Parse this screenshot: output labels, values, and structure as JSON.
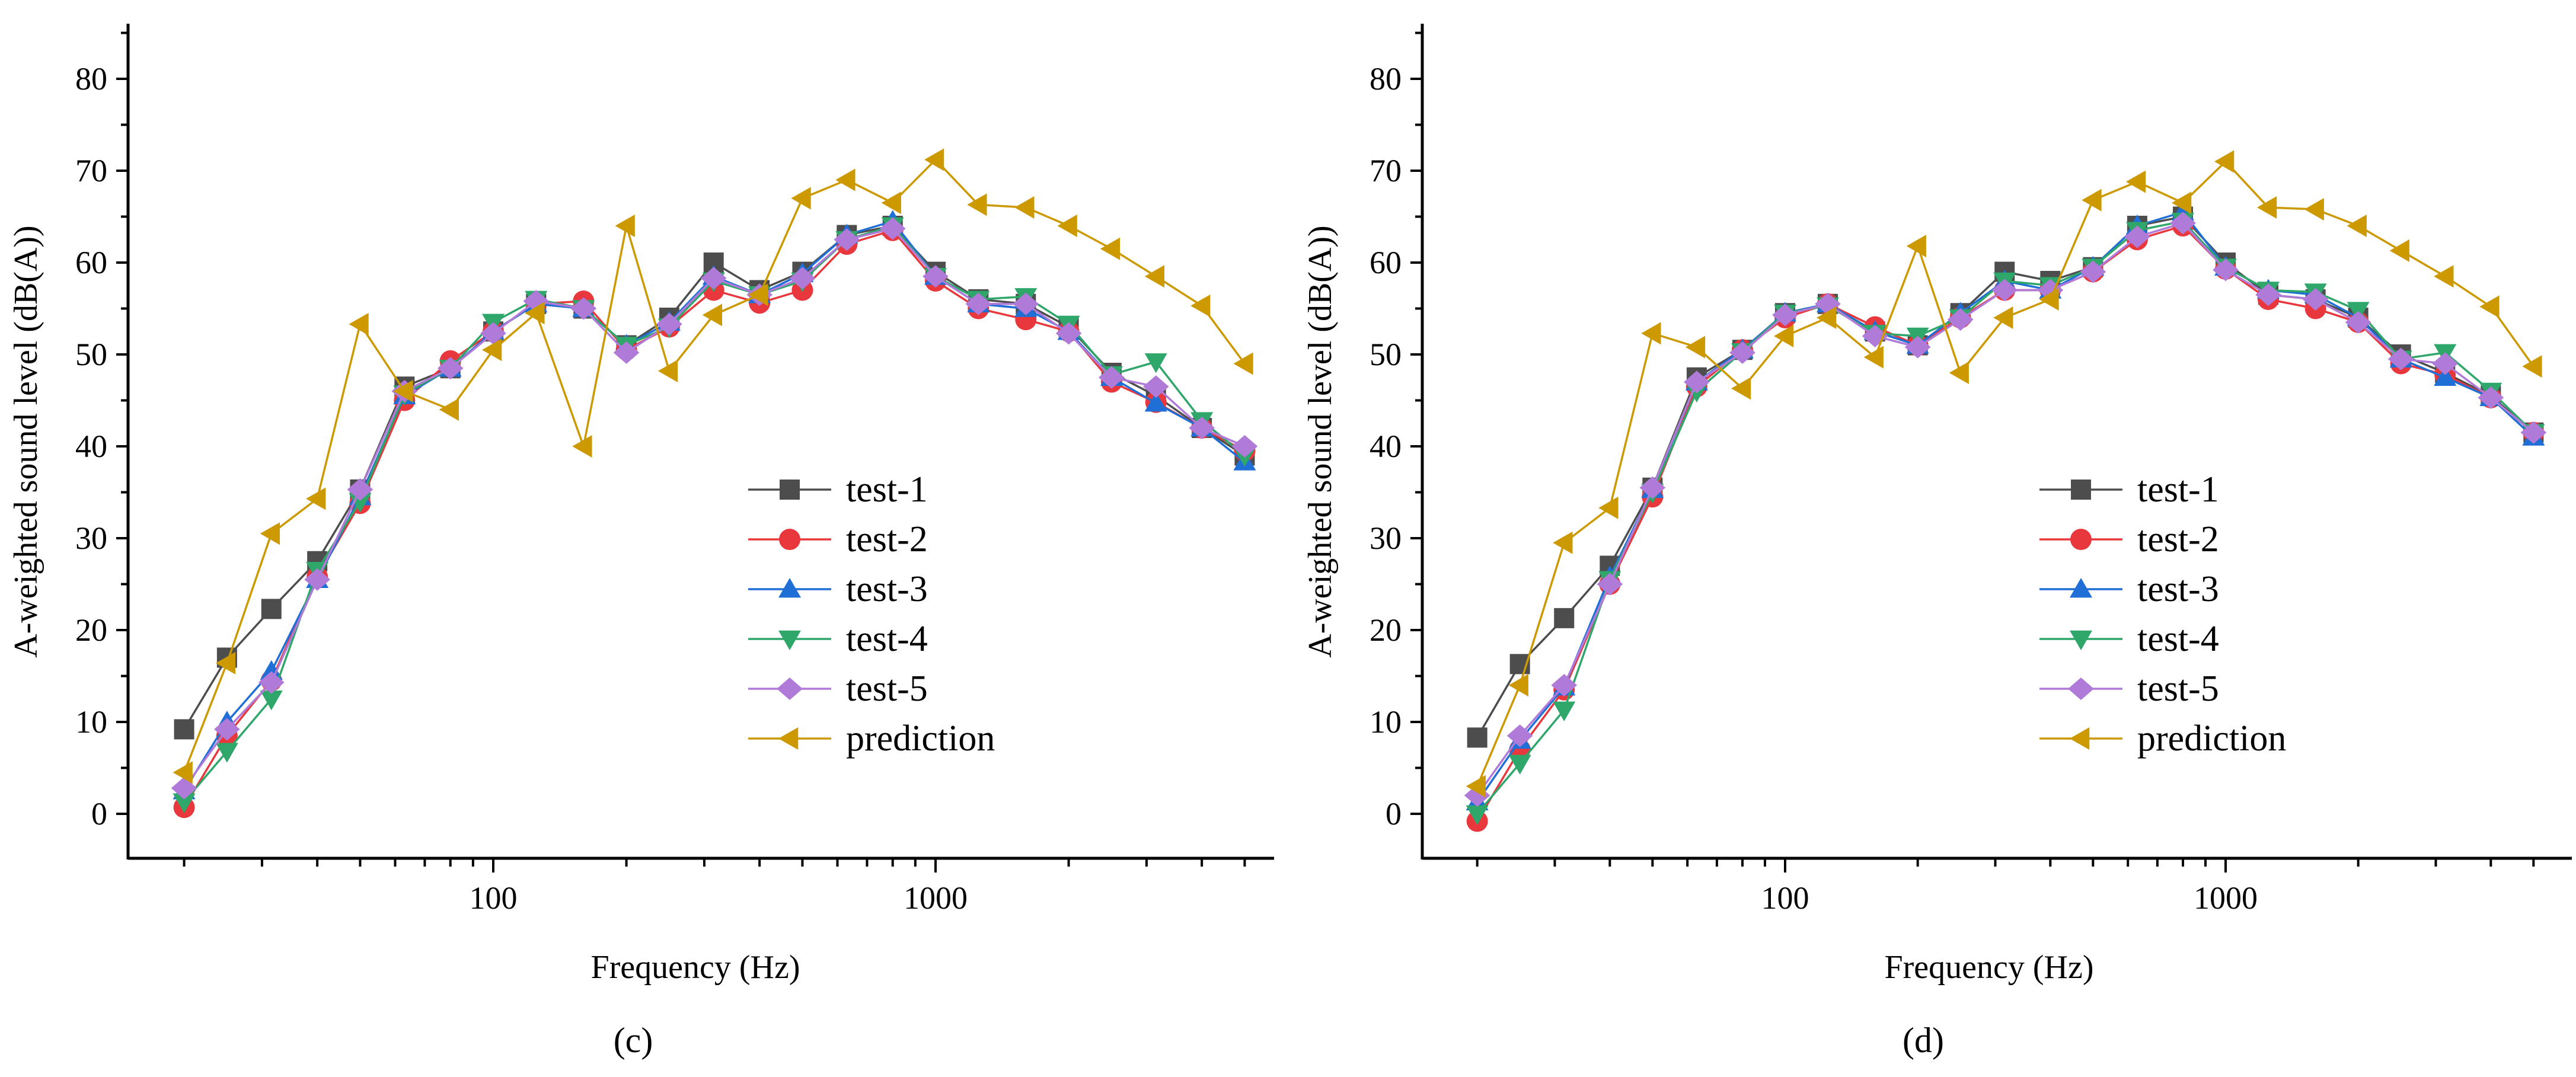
{
  "chart_data": [
    {
      "type": "line",
      "panel_label": "(c)",
      "xlabel": "Frequency (Hz)",
      "ylabel": "A-weighted sound level (dB(A))",
      "xscale": "log",
      "xlim": [
        15,
        6000
      ],
      "ylim": [
        -5,
        86
      ],
      "xticks": [
        100,
        1000
      ],
      "xtick_labels": [
        "100",
        "1000"
      ],
      "yticks": [
        0,
        10,
        20,
        30,
        40,
        50,
        60,
        70,
        80
      ],
      "ytick_labels": [
        "0",
        "10",
        "20",
        "30",
        "40",
        "50",
        "60",
        "70",
        "80"
      ],
      "legend_position": "center-right",
      "x": [
        20,
        25,
        31.5,
        40,
        50,
        63,
        80,
        100,
        125,
        160,
        200,
        250,
        315,
        400,
        500,
        630,
        800,
        1000,
        1250,
        1600,
        2000,
        2500,
        3150,
        4000,
        5000
      ],
      "series": [
        {
          "name": "test-1",
          "values": [
            9.2,
            17,
            22.3,
            27.5,
            35.3,
            46.5,
            48.5,
            52.5,
            55.5,
            55,
            51,
            54,
            60,
            57,
            59,
            63,
            64,
            59,
            56,
            55.5,
            53,
            48,
            45.5,
            42,
            39
          ]
        },
        {
          "name": "test-2",
          "values": [
            0.7,
            8.5,
            14.5,
            25.8,
            33.8,
            45,
            49.3,
            52.5,
            55.5,
            55.8,
            50.5,
            53,
            57,
            55.6,
            57,
            62,
            63.5,
            58,
            55,
            53.8,
            52.5,
            47,
            44.8,
            42,
            39.5
          ]
        },
        {
          "name": "test-3",
          "values": [
            2.5,
            10,
            15.5,
            25.5,
            34.5,
            45.5,
            48.5,
            52.5,
            55.5,
            55,
            51,
            53.5,
            58.5,
            56.5,
            58.8,
            63,
            64.5,
            58.5,
            55.5,
            55,
            52.5,
            47.5,
            44.7,
            42,
            38.3
          ]
        },
        {
          "name": "test-4",
          "values": [
            1.3,
            6.8,
            12.5,
            26.5,
            34,
            45.7,
            48.5,
            53.5,
            56,
            55,
            51,
            53,
            58,
            56.5,
            58,
            62.5,
            64,
            58.5,
            56,
            56.3,
            53.3,
            47.8,
            49.2,
            42.8,
            39
          ]
        },
        {
          "name": "test-5",
          "values": [
            2.8,
            9.2,
            14.3,
            25.5,
            35.3,
            46,
            48.5,
            52.3,
            55.8,
            55,
            50.2,
            53.3,
            58.3,
            56.5,
            58.3,
            62.5,
            63.7,
            58.5,
            55.5,
            55.5,
            52.3,
            47.5,
            46.5,
            42,
            40
          ]
        },
        {
          "name": "prediction",
          "values": [
            4.5,
            16.4,
            30.5,
            34.3,
            53.3,
            46,
            44,
            50.5,
            54.5,
            40,
            64,
            48.2,
            54.3,
            56.5,
            67,
            69,
            66.5,
            71.2,
            66.3,
            66,
            64,
            61.5,
            58.5,
            55.3,
            49
          ]
        }
      ]
    },
    {
      "type": "line",
      "panel_label": "(d)",
      "xlabel": "Frequency (Hz)",
      "ylabel": "A-weighted sound level (dB(A))",
      "xscale": "log",
      "xlim": [
        15,
        6000
      ],
      "ylim": [
        -5,
        86
      ],
      "xticks": [
        100,
        1000
      ],
      "xtick_labels": [
        "100",
        "1000"
      ],
      "yticks": [
        0,
        10,
        20,
        30,
        40,
        50,
        60,
        70,
        80
      ],
      "ytick_labels": [
        "0",
        "10",
        "20",
        "30",
        "40",
        "50",
        "60",
        "70",
        "80"
      ],
      "legend_position": "center-right",
      "x": [
        20,
        25,
        31.5,
        40,
        50,
        63,
        80,
        100,
        125,
        160,
        200,
        250,
        315,
        400,
        500,
        630,
        800,
        1000,
        1250,
        1600,
        2000,
        2500,
        3150,
        4000,
        5000
      ],
      "series": [
        {
          "name": "test-1",
          "values": [
            8.3,
            16.3,
            21.3,
            27,
            35.5,
            47.5,
            50.5,
            54.5,
            55.5,
            52.5,
            51,
            54.5,
            59,
            58,
            59.5,
            64,
            65,
            60,
            56.5,
            56,
            54,
            50,
            48,
            45.5,
            41.5
          ]
        },
        {
          "name": "test-2",
          "values": [
            -0.8,
            7,
            13.5,
            25,
            34.5,
            46.5,
            50.5,
            54,
            55.5,
            53,
            51,
            54,
            57,
            57,
            59,
            62.5,
            64,
            59.3,
            56,
            55,
            53.5,
            49,
            47.8,
            45.3,
            41.5
          ]
        },
        {
          "name": "test-3",
          "values": [
            1.3,
            8,
            13.8,
            25.8,
            35.3,
            47,
            50.5,
            54.5,
            55.5,
            52.5,
            51,
            54.5,
            58,
            57,
            59.5,
            64,
            65.5,
            59.5,
            57,
            56.5,
            54,
            49.5,
            47.5,
            45.3,
            41
          ]
        },
        {
          "name": "test-4",
          "values": [
            0,
            5.5,
            11.3,
            25.5,
            35,
            46,
            50.3,
            54.5,
            55.3,
            52.3,
            52,
            54,
            58,
            57.5,
            59.5,
            63.5,
            64.5,
            59.5,
            57,
            56.8,
            54.8,
            49.5,
            50.2,
            46,
            41.5
          ]
        },
        {
          "name": "test-5",
          "values": [
            2,
            8.5,
            14,
            25,
            35.5,
            47,
            50.2,
            54.3,
            55.5,
            52,
            50.8,
            53.8,
            57,
            57,
            59,
            62.8,
            64.3,
            59.2,
            56.5,
            56,
            53.5,
            49.5,
            49,
            45.3,
            41.5
          ]
        },
        {
          "name": "prediction",
          "values": [
            3,
            14,
            29.5,
            33.3,
            52.3,
            50.8,
            46.3,
            52,
            54,
            49.7,
            61.8,
            48,
            54,
            56,
            66.8,
            68.8,
            66.5,
            71,
            66,
            65.8,
            64,
            61.3,
            58.5,
            55.2,
            48.7
          ]
        }
      ]
    }
  ],
  "series_style": [
    {
      "name": "test-1",
      "color": "#4d4d4d",
      "marker": "square"
    },
    {
      "name": "test-2",
      "color": "#e8383d",
      "marker": "circle"
    },
    {
      "name": "test-3",
      "color": "#1f6fd6",
      "marker": "triangle-up"
    },
    {
      "name": "test-4",
      "color": "#2fa66a",
      "marker": "triangle-down"
    },
    {
      "name": "test-5",
      "color": "#b07ad8",
      "marker": "diamond"
    },
    {
      "name": "prediction",
      "color": "#cc9900",
      "marker": "triangle-left"
    }
  ]
}
